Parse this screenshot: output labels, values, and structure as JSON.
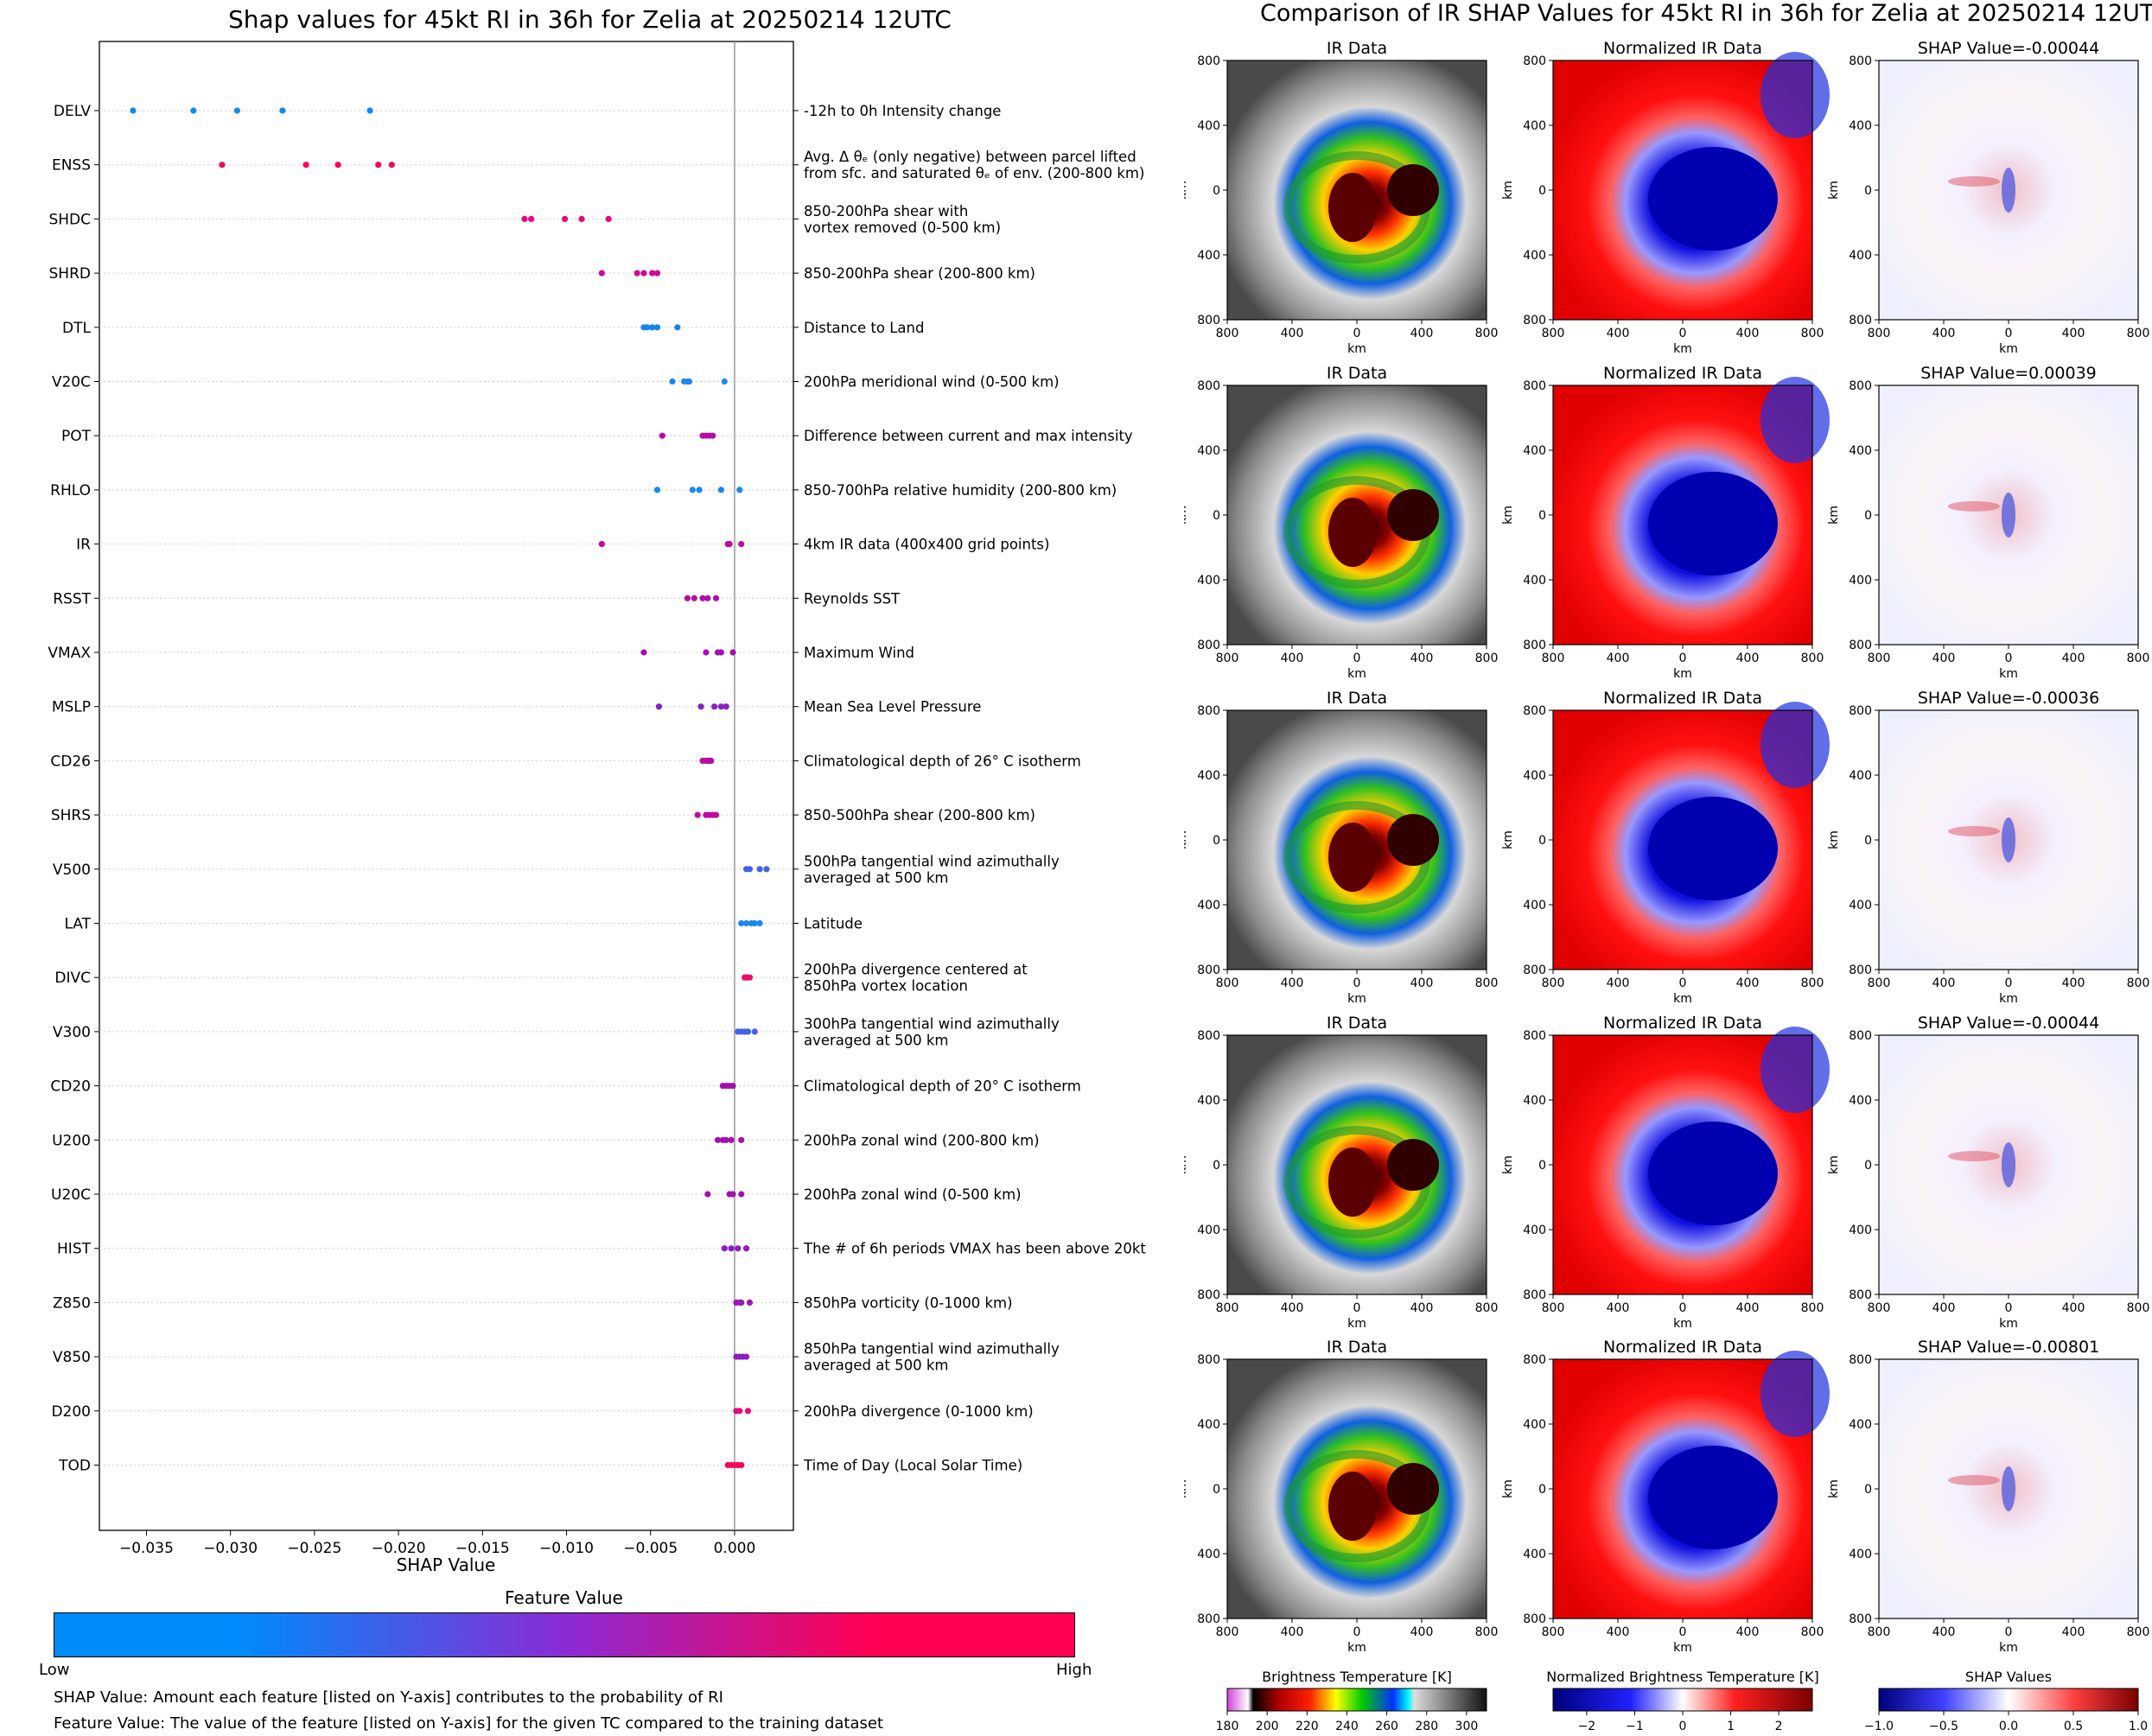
{
  "left_title": "Shap values for 45kt RI in 36h for Zelia at 20250214 12UTC",
  "right_title": "Comparison of IR SHAP Values for 45kt RI in 36h for Zelia at 20250214 12UTC",
  "colorbar": {
    "title": "Feature Value",
    "low": "Low",
    "high": "High",
    "colors": [
      "#008bfb",
      "#8a2bd6",
      "#ff0052"
    ]
  },
  "footnotes": {
    "shap": "SHAP Value: Amount each feature [listed on Y-axis] contributes to the probability of RI",
    "feature": "Feature Value: The value of the feature [listed on Y-axis] for the given TC compared to the training dataset"
  },
  "chart_data": [
    {
      "type": "scatter",
      "title": "Shap values for 45kt RI in 36h for Zelia at 20250214 12UTC",
      "xlabel": "SHAP Value",
      "ylabel": "",
      "xlim": [
        -0.0378,
        0.0035
      ],
      "xticks": [
        -0.035,
        -0.03,
        -0.025,
        -0.02,
        -0.015,
        -0.01,
        -0.005,
        0.0
      ],
      "xtick_labels": [
        "−0.035",
        "−0.030",
        "−0.025",
        "−0.020",
        "−0.015",
        "−0.010",
        "−0.005",
        "0.000"
      ],
      "grid": false,
      "features": [
        {
          "name": "DELV",
          "desc": [
            "-12h to 0h Intensity change"
          ],
          "color": "#0f8af2",
          "values": [
            -0.0358,
            -0.0322,
            -0.0296,
            -0.0269,
            -0.0217
          ]
        },
        {
          "name": "ENSS",
          "desc": [
            "Avg. Δ θₑ (only negative) between parcel lifted",
            "from sfc. and saturated θₑ of env. (200-800 km)"
          ],
          "color": "#f8065a",
          "values": [
            -0.0305,
            -0.0255,
            -0.0236,
            -0.0212,
            -0.0204
          ]
        },
        {
          "name": "SHDC",
          "desc": [
            "850-200hPa shear with",
            "vortex removed (0-500 km)"
          ],
          "color": "#e8077a",
          "values": [
            -0.0125,
            -0.0121,
            -0.0101,
            -0.0091,
            -0.0075
          ]
        },
        {
          "name": "SHRD",
          "desc": [
            "850-200hPa shear (200-800 km)"
          ],
          "color": "#d00796",
          "values": [
            -0.0079,
            -0.0058,
            -0.0054,
            -0.0049,
            -0.0046
          ]
        },
        {
          "name": "DTL",
          "desc": [
            "Distance to Land"
          ],
          "color": "#1185ef",
          "values": [
            -0.0054,
            -0.0052,
            -0.0049,
            -0.0046,
            -0.0034
          ]
        },
        {
          "name": "V20C",
          "desc": [
            "200hPa meridional wind (0-500 km)"
          ],
          "color": "#1a88f2",
          "values": [
            -0.0037,
            -0.003,
            -0.0028,
            -0.0027,
            -0.0006
          ]
        },
        {
          "name": "POT",
          "desc": [
            "Difference between current and max intensity"
          ],
          "color": "#b50da6",
          "values": [
            -0.0043,
            -0.0019,
            -0.0017,
            -0.0015,
            -0.0013
          ]
        },
        {
          "name": "RHLO",
          "desc": [
            "850-700hPa relative humidity (200-800 km)"
          ],
          "color": "#1a88f2",
          "values": [
            -0.0046,
            -0.0025,
            -0.0021,
            -0.0008,
            0.0003
          ]
        },
        {
          "name": "IR",
          "desc": [
            "4km IR data (400x400 grid points)"
          ],
          "color": "#c00aa0",
          "values": [
            -0.0079,
            -0.0004,
            -0.0003,
            0.0004
          ]
        },
        {
          "name": "RSST",
          "desc": [
            "Reynolds SST"
          ],
          "color": "#b50da6",
          "values": [
            -0.0028,
            -0.0024,
            -0.0019,
            -0.0016,
            -0.0011
          ]
        },
        {
          "name": "VMAX",
          "desc": [
            "Maximum Wind"
          ],
          "color": "#a410b0",
          "values": [
            -0.0054,
            -0.0017,
            -0.001,
            -0.0008,
            -0.0001
          ]
        },
        {
          "name": "MSLP",
          "desc": [
            "Mean Sea Level Pressure"
          ],
          "color": "#8b1fbf",
          "values": [
            -0.0045,
            -0.002,
            -0.0012,
            -0.0008,
            -0.0005
          ]
        },
        {
          "name": "CD26",
          "desc": [
            "Climatological depth of 26° C isotherm"
          ],
          "color": "#b50da6",
          "values": [
            -0.0019,
            -0.0017,
            -0.0016,
            -0.0015,
            -0.0014
          ]
        },
        {
          "name": "SHRS",
          "desc": [
            "850-500hPa shear (200-800 km)"
          ],
          "color": "#c00aa0",
          "values": [
            -0.0022,
            -0.0017,
            -0.0015,
            -0.0013,
            -0.0011
          ]
        },
        {
          "name": "V500",
          "desc": [
            "500hPa tangential wind azimuthally",
            "averaged at 500 km"
          ],
          "color": "#4462e6",
          "values": [
            0.0007,
            0.0009,
            0.0015,
            0.0019
          ]
        },
        {
          "name": "LAT",
          "desc": [
            "Latitude"
          ],
          "color": "#1a88f2",
          "values": [
            0.0004,
            0.0007,
            0.001,
            0.0012,
            0.0015
          ]
        },
        {
          "name": "DIVC",
          "desc": [
            "200hPa divergence centered at",
            "850hPa vortex location"
          ],
          "color": "#f0066a",
          "values": [
            0.0006,
            0.0007,
            0.0008,
            0.0009
          ]
        },
        {
          "name": "V300",
          "desc": [
            "300hPa tangential wind azimuthally",
            "averaged at 500 km"
          ],
          "color": "#4462e6",
          "values": [
            0.0002,
            0.0004,
            0.0006,
            0.0008,
            0.0012
          ]
        },
        {
          "name": "CD20",
          "desc": [
            "Climatological depth of 20° C isotherm"
          ],
          "color": "#a410b0",
          "values": [
            -0.0007,
            -0.0005,
            -0.0003,
            -0.0001
          ]
        },
        {
          "name": "U200",
          "desc": [
            "200hPa zonal wind (200-800 km)"
          ],
          "color": "#a410b0",
          "values": [
            -0.001,
            -0.0007,
            -0.0005,
            -0.0002,
            0.0004
          ]
        },
        {
          "name": "U20C",
          "desc": [
            "200hPa zonal wind (0-500 km)"
          ],
          "color": "#a410b0",
          "values": [
            -0.0016,
            -0.0003,
            -0.0001,
            0.0004
          ]
        },
        {
          "name": "HIST",
          "desc": [
            "The # of 6h periods VMAX has been above 20kt"
          ],
          "color": "#8b1fbf",
          "values": [
            -0.0006,
            -0.0002,
            0.0002,
            0.0007
          ]
        },
        {
          "name": "Z850",
          "desc": [
            "850hPa vorticity (0-1000 km)"
          ],
          "color": "#9b18b8",
          "values": [
            0.0001,
            0.0003,
            0.0004,
            0.0009
          ]
        },
        {
          "name": "V850",
          "desc": [
            "850hPa tangential wind azimuthally",
            "averaged at 500 km"
          ],
          "color": "#8b1fbf",
          "values": [
            0.0001,
            0.0003,
            0.0005,
            0.0007
          ]
        },
        {
          "name": "D200",
          "desc": [
            "200hPa divergence (0-1000 km)"
          ],
          "color": "#e8077a",
          "values": [
            0.0001,
            0.0003,
            0.0008
          ]
        },
        {
          "name": "TOD",
          "desc": [
            "Time of Day (Local Solar Time)"
          ],
          "color": "#f8065a",
          "values": [
            -0.0004,
            -0.0002,
            0.0,
            0.0002,
            0.0004
          ]
        }
      ]
    },
    {
      "type": "heatmap",
      "title": "Comparison of IR SHAP Values for 45kt RI in 36h for Zelia at 20250214 12UTC",
      "column_titles": [
        "IR Data",
        "Normalized IR Data"
      ],
      "shap_titles": [
        "SHAP Value=-0.00044",
        "SHAP Value=0.00039",
        "SHAP Value=-0.00036",
        "SHAP Value=-0.00044",
        "SHAP Value=-0.00801"
      ],
      "axis_ticks": [
        "800",
        "400",
        "0",
        "400",
        "800"
      ],
      "xlabel": "km",
      "ylabel": "km",
      "colorbars": [
        {
          "label": "Brightness Temperature [K]",
          "ticks": [
            "180",
            "200",
            "220",
            "240",
            "260",
            "280",
            "300"
          ],
          "range": [
            180,
            310
          ],
          "offset": ""
        },
        {
          "label": "Normalized Brightness Temperature [K]",
          "ticks": [
            "−2",
            "−1",
            "0",
            "1",
            "2"
          ],
          "range": [
            -2.7,
            2.7
          ],
          "offset": ""
        },
        {
          "label": "SHAP Values",
          "ticks": [
            "−1.0",
            "−0.5",
            "0.0",
            "0.5",
            "1.0"
          ],
          "range": [
            -1,
            1
          ],
          "offset": "1e−5"
        }
      ]
    }
  ]
}
